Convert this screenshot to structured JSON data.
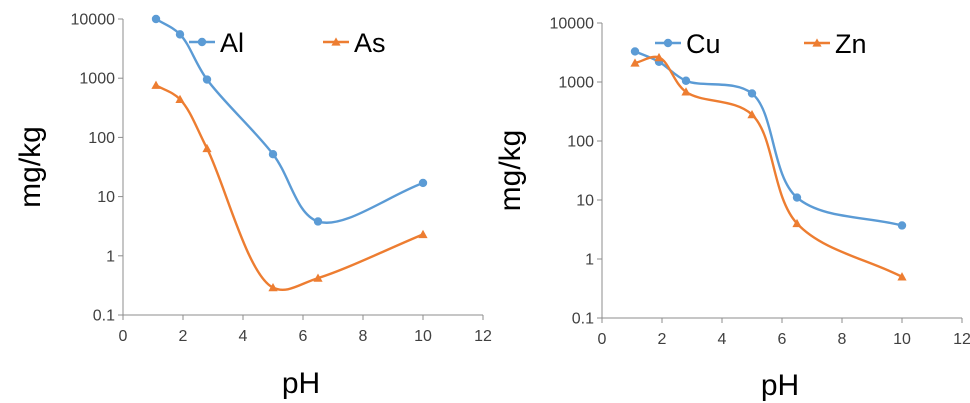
{
  "chart_data": [
    {
      "type": "line",
      "xlabel": "pH",
      "ylabel": "mg/kg",
      "y_scale": "log",
      "xlim": [
        0,
        12
      ],
      "ylim": [
        0.1,
        10000
      ],
      "x_ticks": [
        "0",
        "2",
        "4",
        "6",
        "8",
        "10",
        "12"
      ],
      "y_ticks": [
        "0.1",
        "1",
        "10",
        "100",
        "1000",
        "10000"
      ],
      "grid": false,
      "legend_position": "top",
      "series": [
        {
          "name": "Al",
          "color": "#5B9BD5",
          "marker": "circle",
          "points": [
            [
              1.1,
              10000
            ],
            [
              1.9,
              5500
            ],
            [
              2.8,
              950
            ],
            [
              5.0,
              52
            ],
            [
              6.5,
              3.8
            ],
            [
              10.0,
              17
            ]
          ]
        },
        {
          "name": "As",
          "color": "#ED7D31",
          "marker": "triangle",
          "points": [
            [
              1.1,
              760
            ],
            [
              1.9,
              440
            ],
            [
              2.8,
              65
            ],
            [
              5.0,
              0.29
            ],
            [
              6.5,
              0.42
            ],
            [
              10.0,
              2.3
            ]
          ]
        }
      ]
    },
    {
      "type": "line",
      "xlabel": "pH",
      "ylabel": "mg/kg",
      "y_scale": "log",
      "xlim": [
        0,
        12
      ],
      "ylim": [
        0.1,
        10000
      ],
      "x_ticks": [
        "0",
        "2",
        "4",
        "6",
        "8",
        "10",
        "12"
      ],
      "y_ticks": [
        "0.1",
        "1",
        "10",
        "100",
        "1000",
        "10000"
      ],
      "grid": false,
      "legend_position": "top",
      "series": [
        {
          "name": "Cu",
          "color": "#5B9BD5",
          "marker": "circle",
          "points": [
            [
              1.1,
              3300
            ],
            [
              1.9,
              2200
            ],
            [
              2.8,
              1050
            ],
            [
              5.0,
              640
            ],
            [
              6.5,
              11
            ],
            [
              10.0,
              3.7
            ]
          ]
        },
        {
          "name": "Zn",
          "color": "#ED7D31",
          "marker": "triangle",
          "points": [
            [
              1.1,
              2100
            ],
            [
              1.9,
              2600
            ],
            [
              2.8,
              680
            ],
            [
              5.0,
              280
            ],
            [
              6.5,
              4.0
            ],
            [
              10.0,
              0.5
            ]
          ]
        }
      ]
    }
  ]
}
